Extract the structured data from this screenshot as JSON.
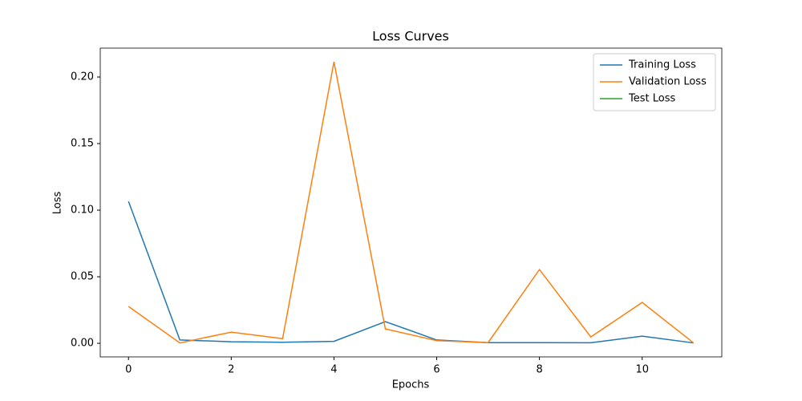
{
  "chart_data": {
    "type": "line",
    "title": "Loss Curves",
    "xlabel": "Epochs",
    "ylabel": "Loss",
    "x": [
      0,
      1,
      2,
      3,
      4,
      5,
      6,
      7,
      8,
      9,
      10,
      11
    ],
    "series": [
      {
        "name": "Training Loss",
        "color": "#1f77b4",
        "values": [
          0.1066,
          0.0025,
          0.0012,
          0.0008,
          0.0015,
          0.0163,
          0.0025,
          0.0005,
          0.0005,
          0.0004,
          0.0054,
          0.0003
        ]
      },
      {
        "name": "Validation Loss",
        "color": "#ff7f0e",
        "values": [
          0.0277,
          0.0003,
          0.0084,
          0.0035,
          0.2114,
          0.0108,
          0.002,
          0.0005,
          0.0554,
          0.0048,
          0.0307,
          0.0003
        ]
      },
      {
        "name": "Test Loss",
        "color": "#2ca02c",
        "values": [
          null,
          null,
          null,
          null,
          null,
          null,
          null,
          null,
          null,
          null,
          null,
          null
        ]
      }
    ],
    "xlim": [
      -0.55,
      11.55
    ],
    "xticks": [
      0,
      2,
      4,
      6,
      8,
      10
    ],
    "ylim": [
      -0.0102,
      0.2217
    ],
    "yticks": [
      {
        "value": 0,
        "label": "0.00"
      },
      {
        "value": 0.05,
        "label": "0.05"
      },
      {
        "value": 0.1,
        "label": "0.10"
      },
      {
        "value": 0.15,
        "label": "0.15"
      },
      {
        "value": 0.2,
        "label": "0.20"
      }
    ],
    "grid": false,
    "legend": "upper right"
  }
}
